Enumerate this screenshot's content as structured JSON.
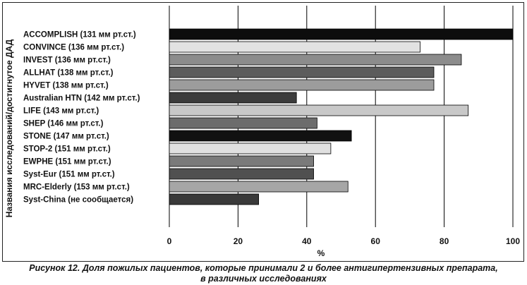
{
  "chart_data": {
    "type": "bar",
    "orientation": "horizontal",
    "ylabel": "Названия исследований/достигнутое ДАД",
    "xlabel": "%",
    "xlim": [
      0,
      100
    ],
    "xticks": [
      0,
      20,
      40,
      60,
      80,
      100
    ],
    "grid": "vertical",
    "categories": [
      "ACCOMPLISH (131 мм рт.ст.)",
      "CONVINCE (136 мм рт.ст.)",
      "INVEST (136 мм рт.ст.)",
      "ALLHAT (138 мм рт.ст.)",
      "HYVET (138 мм рт.ст.)",
      "Australian HTN (142 мм рт.ст.)",
      "LIFE (143 мм рт.ст.)",
      "SHEP (146 мм рт.ст.)",
      "STONE (147 мм рт.ст.)",
      "STOP-2 (151 мм рт.ст.)",
      "EWPHE (151 мм рт.ст.)",
      "Syst-Eur (151 мм рт.ст.)",
      "MRC-Elderly (153 мм рт.ст.)",
      "Syst-China (не сообщается)"
    ],
    "values": [
      100,
      73,
      85,
      77,
      77,
      37,
      87,
      43,
      53,
      47,
      42,
      42,
      52,
      26
    ],
    "colors": [
      "#0d0d0d",
      "#e2e2e2",
      "#8c8c8c",
      "#5c5c5c",
      "#9c9c9c",
      "#3c3c3c",
      "#c8c8c8",
      "#6c6c6c",
      "#111111",
      "#e0e0e0",
      "#7a7a7a",
      "#505050",
      "#a6a6a6",
      "#3a3a3a"
    ]
  },
  "caption": {
    "lead": "Рисунок 12.",
    "line1": " Доля пожилых пациентов, которые принимали 2 и более антигипертензивных препарата,",
    "line2": "в различных исследованиях"
  }
}
